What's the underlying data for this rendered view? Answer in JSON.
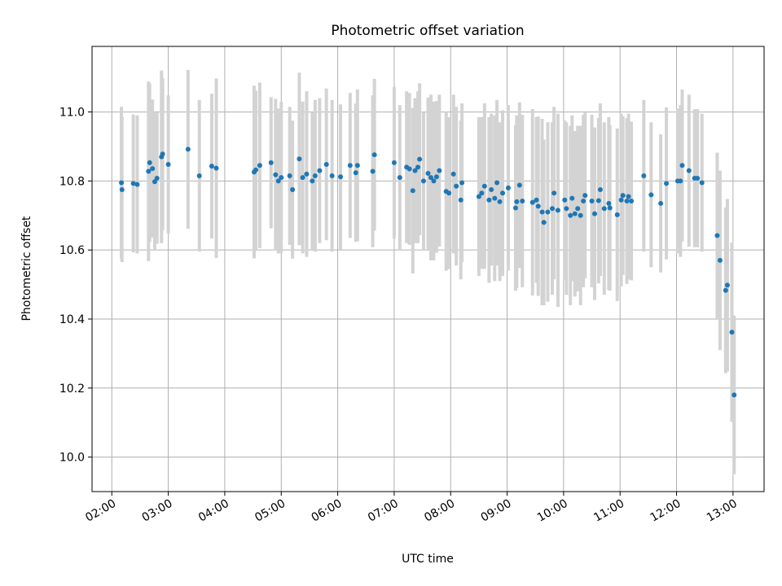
{
  "chart_data": {
    "type": "scatter",
    "title": "Photometric offset variation",
    "xlabel": "UTC time",
    "ylabel": "Photometric offset",
    "xlim": [
      1.65,
      13.55
    ],
    "ylim": [
      9.9,
      11.19
    ],
    "x_ticks": [
      2,
      3,
      4,
      5,
      6,
      7,
      8,
      9,
      10,
      11,
      12,
      13
    ],
    "x_tick_labels": [
      "02:00",
      "03:00",
      "04:00",
      "05:00",
      "06:00",
      "07:00",
      "08:00",
      "09:00",
      "10:00",
      "11:00",
      "12:00",
      "13:00"
    ],
    "y_ticks": [
      10.0,
      10.2,
      10.4,
      10.6,
      10.8,
      11.0
    ],
    "y_tick_labels": [
      "10.0",
      "10.2",
      "10.4",
      "10.6",
      "10.8",
      "11.0"
    ],
    "grid": true,
    "marker_color": "#1f77b4",
    "errorbar_color": "#d3d3d3",
    "series": [
      {
        "name": "offset",
        "x": [
          2.17,
          2.18,
          2.38,
          2.45,
          2.65,
          2.67,
          2.72,
          2.76,
          2.8,
          2.88,
          2.9,
          3.0,
          3.35,
          3.55,
          3.77,
          3.85,
          4.52,
          4.55,
          4.62,
          4.82,
          4.9,
          4.95,
          5.0,
          5.15,
          5.2,
          5.32,
          5.38,
          5.45,
          5.55,
          5.6,
          5.68,
          5.8,
          5.9,
          6.05,
          6.22,
          6.32,
          6.35,
          6.62,
          6.65,
          7.0,
          7.1,
          7.22,
          7.27,
          7.33,
          7.37,
          7.42,
          7.45,
          7.52,
          7.6,
          7.65,
          7.7,
          7.75,
          7.8,
          7.92,
          7.97,
          8.05,
          8.1,
          8.18,
          8.2,
          8.5,
          8.55,
          8.6,
          8.68,
          8.72,
          8.78,
          8.82,
          8.87,
          8.92,
          9.02,
          9.15,
          9.17,
          9.22,
          9.27,
          9.45,
          9.52,
          9.55,
          9.62,
          9.65,
          9.72,
          9.8,
          9.83,
          9.9,
          10.02,
          10.05,
          10.12,
          10.15,
          10.2,
          10.25,
          10.3,
          10.35,
          10.38,
          10.5,
          10.55,
          10.62,
          10.65,
          10.72,
          10.8,
          10.82,
          10.95,
          11.02,
          11.05,
          11.12,
          11.15,
          11.2,
          11.42,
          11.55,
          11.72,
          11.82,
          12.02,
          12.07,
          12.1,
          12.22,
          12.32,
          12.37,
          12.45,
          12.72,
          12.77,
          12.87,
          12.9,
          12.98,
          13.02
        ],
        "values": [
          10.795,
          10.775,
          10.793,
          10.79,
          10.828,
          10.853,
          10.836,
          10.798,
          10.808,
          10.87,
          10.878,
          10.848,
          10.892,
          10.815,
          10.843,
          10.837,
          10.826,
          10.832,
          10.845,
          10.853,
          10.818,
          10.8,
          10.81,
          10.815,
          10.775,
          10.864,
          10.81,
          10.82,
          10.8,
          10.815,
          10.83,
          10.848,
          10.815,
          10.812,
          10.845,
          10.824,
          10.845,
          10.828,
          10.876,
          10.853,
          10.81,
          10.84,
          10.835,
          10.772,
          10.83,
          10.84,
          10.863,
          10.8,
          10.822,
          10.81,
          10.8,
          10.812,
          10.83,
          10.77,
          10.765,
          10.82,
          10.785,
          10.745,
          10.795,
          10.755,
          10.765,
          10.785,
          10.745,
          10.775,
          10.75,
          10.795,
          10.74,
          10.765,
          10.78,
          10.722,
          10.74,
          10.788,
          10.742,
          10.738,
          10.745,
          10.727,
          10.71,
          10.68,
          10.71,
          10.72,
          10.765,
          10.715,
          10.745,
          10.72,
          10.7,
          10.75,
          10.705,
          10.72,
          10.7,
          10.742,
          10.758,
          10.742,
          10.705,
          10.743,
          10.775,
          10.72,
          10.735,
          10.722,
          10.702,
          10.745,
          10.758,
          10.742,
          10.755,
          10.742,
          10.815,
          10.76,
          10.735,
          10.793,
          10.8,
          10.8,
          10.845,
          10.83,
          10.808,
          10.808,
          10.795,
          10.642,
          10.57,
          10.483,
          10.498,
          10.362,
          10.18
        ],
        "error": [
          0.22,
          0.21,
          0.2,
          0.2,
          0.26,
          0.23,
          0.2,
          0.2,
          0.19,
          0.25,
          0.22,
          0.2,
          0.23,
          0.22,
          0.21,
          0.26,
          0.25,
          0.23,
          0.24,
          0.19,
          0.22,
          0.21,
          0.22,
          0.2,
          0.2,
          0.25,
          0.22,
          0.24,
          0.2,
          0.22,
          0.21,
          0.22,
          0.22,
          0.21,
          0.21,
          0.2,
          0.22,
          0.22,
          0.22,
          0.22,
          0.21,
          0.22,
          0.22,
          0.24,
          0.21,
          0.22,
          0.22,
          0.2,
          0.22,
          0.24,
          0.23,
          0.22,
          0.22,
          0.23,
          0.22,
          0.23,
          0.23,
          0.23,
          0.23,
          0.23,
          0.22,
          0.24,
          0.24,
          0.22,
          0.24,
          0.24,
          0.23,
          0.24,
          0.24,
          0.24,
          0.25,
          0.24,
          0.25,
          0.27,
          0.24,
          0.26,
          0.27,
          0.24,
          0.26,
          0.25,
          0.25,
          0.28,
          0.23,
          0.25,
          0.26,
          0.24,
          0.24,
          0.24,
          0.26,
          0.25,
          0.24,
          0.25,
          0.25,
          0.24,
          0.25,
          0.25,
          0.25,
          0.24,
          0.25,
          0.25,
          0.23,
          0.24,
          0.24,
          0.23,
          0.22,
          0.21,
          0.2,
          0.22,
          0.21,
          0.22,
          0.22,
          0.22,
          0.2,
          0.2,
          0.2,
          0.24,
          0.26,
          0.24,
          0.25,
          0.26,
          0.23
        ]
      }
    ]
  }
}
